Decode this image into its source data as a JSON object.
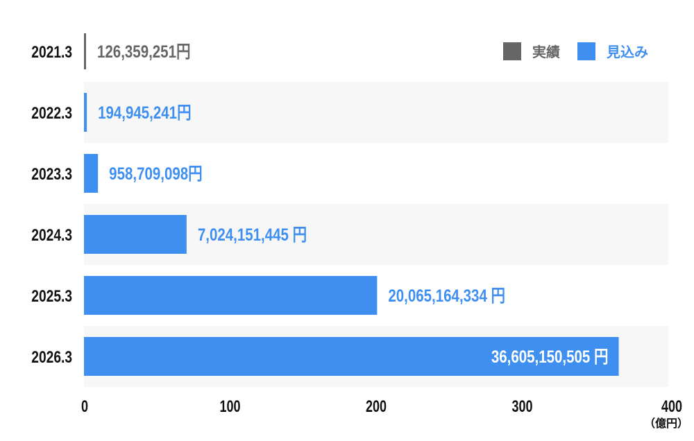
{
  "chart_data": {
    "type": "bar",
    "orientation": "horizontal",
    "categories": [
      "2021.3",
      "2022.3",
      "2023.3",
      "2024.3",
      "2025.3",
      "2026.3"
    ],
    "values": [
      1.26359251,
      1.94945241,
      9.58709098,
      70.24151445,
      200.65164334,
      366.05150505
    ],
    "data_labels": [
      "126,359,251円",
      "194,945,241円",
      "958,709,098円",
      "7,024,151,445 円",
      "20,065,164,334 円",
      "36,605,150,505 円"
    ],
    "kinds": [
      "actual",
      "forecast",
      "forecast",
      "forecast",
      "forecast",
      "forecast"
    ],
    "legend": [
      {
        "key": "actual",
        "label": "実績",
        "color": "#666666"
      },
      {
        "key": "forecast",
        "label": "見込み",
        "color": "#3f8ff0"
      }
    ],
    "legend_position": "top-right",
    "xlim": [
      0,
      400
    ],
    "xticks": [
      "0",
      "100",
      "200",
      "300",
      "400"
    ],
    "xunit": "（億円）",
    "row_band_colors": [
      "#ffffff",
      "#f7f7f7"
    ],
    "grid": false
  }
}
